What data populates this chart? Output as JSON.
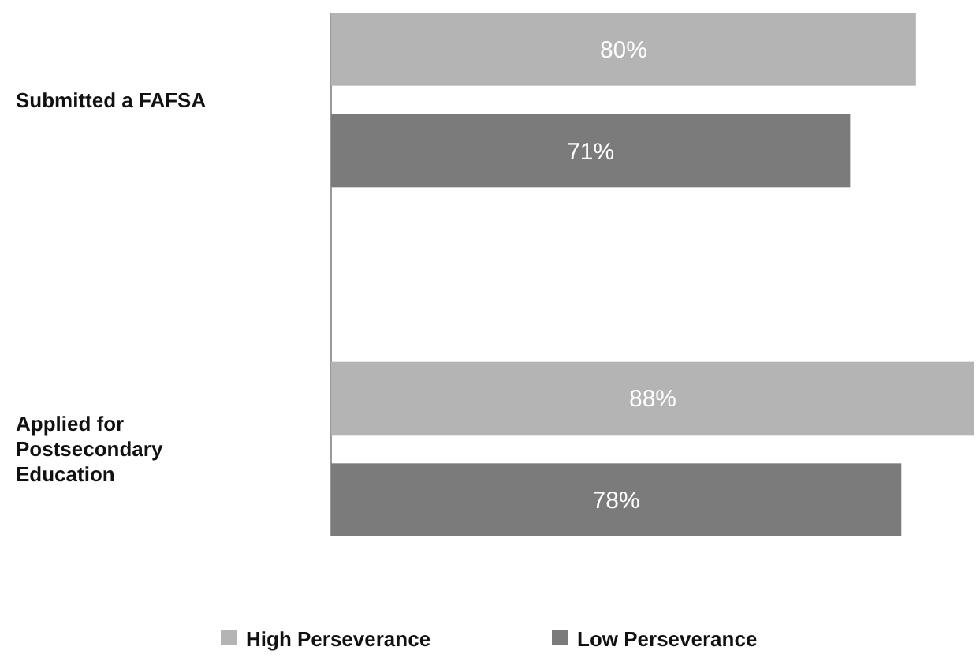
{
  "chart_data": {
    "type": "bar",
    "orientation": "horizontal",
    "categories": [
      "Submitted a FAFSA",
      "Applied for Postsecondary Education"
    ],
    "series": [
      {
        "name": "High Perseverance",
        "color": "#b4b4b4",
        "values": [
          80,
          88
        ],
        "value_labels": [
          "80%",
          "88%"
        ]
      },
      {
        "name": "Low Perseverance",
        "color": "#7b7b7b",
        "values": [
          71,
          78
        ],
        "value_labels": [
          "71%",
          "78%"
        ]
      }
    ],
    "legend": "bottom"
  }
}
